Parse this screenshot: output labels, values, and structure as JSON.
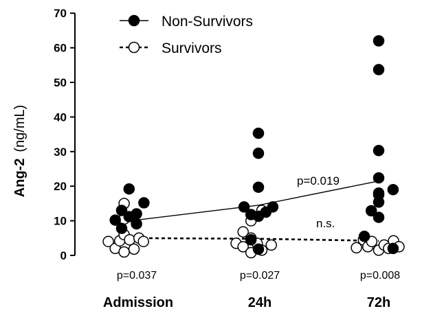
{
  "chart_data": {
    "type": "scatter",
    "ylabel_main": "Ang-2",
    "ylabel_unit": "(ng/mL)",
    "ylim": [
      0,
      70
    ],
    "yticks": [
      0,
      10,
      20,
      30,
      40,
      50,
      60,
      70
    ],
    "categories": [
      "Admission",
      "24h",
      "72h"
    ],
    "bottom_pvalues": [
      "p=0.037",
      "p=0.027",
      "p=0.008"
    ],
    "annotations": {
      "nonsurvivor_trend": "p=0.019",
      "survivor_trend": "n.s."
    },
    "legend": {
      "position": "top",
      "items": [
        "Non-Survivors",
        "Survivors"
      ]
    },
    "series": [
      {
        "name": "Non-Survivors",
        "marker": "filled-circle",
        "trend_line": "solid",
        "trend": [
          10,
          14.5,
          21.5
        ],
        "points": [
          {
            "c": 0,
            "dx": -0.62,
            "y": 10.2
          },
          {
            "c": 0,
            "dx": -0.36,
            "y": 13.0
          },
          {
            "c": 0,
            "dx": -0.36,
            "y": 7.8
          },
          {
            "c": 0,
            "dx": -0.06,
            "y": 19.2
          },
          {
            "c": 0,
            "dx": -0.06,
            "y": 11.2
          },
          {
            "c": 0,
            "dx": 0.24,
            "y": 12.0
          },
          {
            "c": 0,
            "dx": 0.24,
            "y": 9.1
          },
          {
            "c": 0,
            "dx": 0.54,
            "y": 15.2
          },
          {
            "c": 1,
            "dx": -0.58,
            "y": 14.0
          },
          {
            "c": 1,
            "dx": -0.3,
            "y": 11.8
          },
          {
            "c": 1,
            "dx": -0.3,
            "y": 4.5
          },
          {
            "c": 1,
            "dx": 0.0,
            "y": 35.3
          },
          {
            "c": 1,
            "dx": 0.0,
            "y": 29.5
          },
          {
            "c": 1,
            "dx": 0.0,
            "y": 19.7
          },
          {
            "c": 1,
            "dx": 0.0,
            "y": 11.3
          },
          {
            "c": 1,
            "dx": 0.0,
            "y": 1.8
          },
          {
            "c": 1,
            "dx": 0.3,
            "y": 12.5
          },
          {
            "c": 1,
            "dx": 0.58,
            "y": 14.0
          },
          {
            "c": 2,
            "dx": -0.58,
            "y": 5.5
          },
          {
            "c": 2,
            "dx": -0.3,
            "y": 12.9
          },
          {
            "c": 2,
            "dx": 0.0,
            "y": 62.0
          },
          {
            "c": 2,
            "dx": 0.0,
            "y": 53.7
          },
          {
            "c": 2,
            "dx": 0.0,
            "y": 30.3
          },
          {
            "c": 2,
            "dx": 0.0,
            "y": 22.4
          },
          {
            "c": 2,
            "dx": 0.0,
            "y": 18.0
          },
          {
            "c": 2,
            "dx": 0.0,
            "y": 15.4
          },
          {
            "c": 2,
            "dx": 0.0,
            "y": 11.0
          },
          {
            "c": 2,
            "dx": 0.58,
            "y": 19.0
          },
          {
            "c": 2,
            "dx": 0.58,
            "y": 2.0
          }
        ]
      },
      {
        "name": "Survivors",
        "marker": "open-circle",
        "trend_line": "dashed",
        "trend": [
          5.0,
          4.8,
          4.2
        ],
        "points": [
          {
            "c": 0,
            "dx": -0.9,
            "y": 4.0
          },
          {
            "c": 0,
            "dx": -0.62,
            "y": 2.0
          },
          {
            "c": 0,
            "dx": -0.44,
            "y": 4.2
          },
          {
            "c": 0,
            "dx": -0.26,
            "y": 15.0
          },
          {
            "c": 0,
            "dx": -0.26,
            "y": 10.5
          },
          {
            "c": 0,
            "dx": -0.26,
            "y": 6.0
          },
          {
            "c": 0,
            "dx": -0.26,
            "y": 1.0
          },
          {
            "c": 0,
            "dx": -0.04,
            "y": 4.5
          },
          {
            "c": 0,
            "dx": 0.14,
            "y": 1.8
          },
          {
            "c": 0,
            "dx": 0.34,
            "y": 5.0
          },
          {
            "c": 0,
            "dx": 0.52,
            "y": 4.0
          },
          {
            "c": 1,
            "dx": -0.9,
            "y": 3.5
          },
          {
            "c": 1,
            "dx": -0.62,
            "y": 6.8
          },
          {
            "c": 1,
            "dx": -0.62,
            "y": 2.5
          },
          {
            "c": 1,
            "dx": -0.3,
            "y": 10.0
          },
          {
            "c": 1,
            "dx": -0.3,
            "y": 5.0
          },
          {
            "c": 1,
            "dx": -0.3,
            "y": 0.8
          },
          {
            "c": 1,
            "dx": -0.05,
            "y": 3.5
          },
          {
            "c": 1,
            "dx": 0.14,
            "y": 1.5
          },
          {
            "c": 1,
            "dx": 0.14,
            "y": 13.0
          },
          {
            "c": 1,
            "dx": 0.52,
            "y": 3.0
          },
          {
            "c": 2,
            "dx": -0.9,
            "y": 2.2
          },
          {
            "c": 2,
            "dx": -0.62,
            "y": 4.5
          },
          {
            "c": 2,
            "dx": -0.44,
            "y": 2.5
          },
          {
            "c": 2,
            "dx": -0.28,
            "y": 4.0
          },
          {
            "c": 2,
            "dx": 0.0,
            "y": 17.5
          },
          {
            "c": 2,
            "dx": 0.0,
            "y": 1.5
          },
          {
            "c": 2,
            "dx": 0.22,
            "y": 3.0
          },
          {
            "c": 2,
            "dx": 0.4,
            "y": 2.0
          },
          {
            "c": 2,
            "dx": 0.6,
            "y": 4.2
          },
          {
            "c": 2,
            "dx": 0.82,
            "y": 2.5
          }
        ]
      }
    ],
    "colors": {
      "ink": "#000000",
      "background": "#ffffff"
    }
  }
}
